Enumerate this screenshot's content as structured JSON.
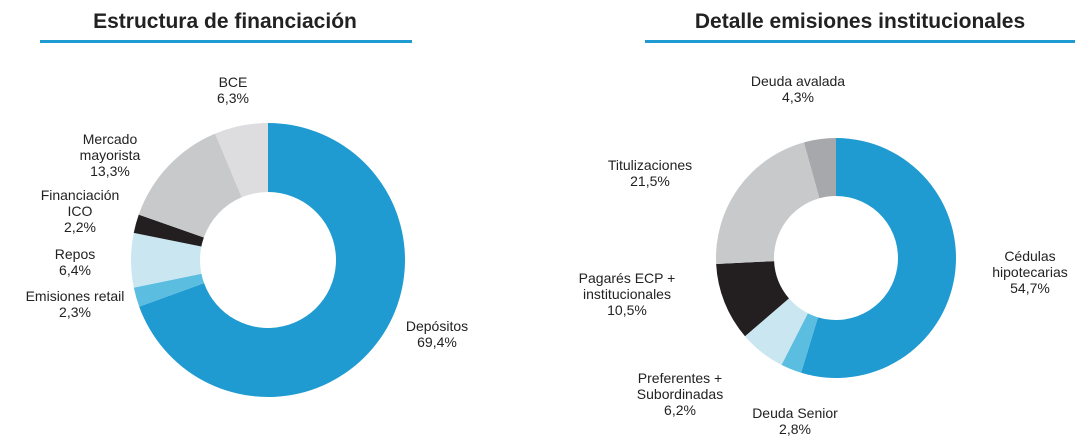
{
  "chart_data": [
    {
      "type": "donut",
      "title": "Estructura de financiación",
      "categories": [
        "Depósitos",
        "Emisiones retail",
        "Repos",
        "Financiación ICO",
        "Mercado mayorista",
        "BCE"
      ],
      "values": [
        69.4,
        2.3,
        6.4,
        2.2,
        13.3,
        6.3
      ],
      "value_labels": [
        "69,4%",
        "2,3%",
        "6,4%",
        "2,2%",
        "13,3%",
        "6,3%"
      ],
      "colors": [
        "#1f9bd1",
        "#5bbde0",
        "#cae7f1",
        "#231f20",
        "#c8c9cb",
        "#dddddf"
      ]
    },
    {
      "type": "donut",
      "title": "Detalle emisiones institucionales",
      "categories": [
        "Cédulas hipotecarias",
        "Deuda Senior",
        "Preferentes + Subordinadas",
        "Pagarés ECP + institucionales",
        "Titulizaciones",
        "Deuda avalada"
      ],
      "values": [
        54.7,
        2.8,
        6.2,
        10.5,
        21.5,
        4.3
      ],
      "value_labels": [
        "54,7%",
        "2,8%",
        "6,2%",
        "10,5%",
        "21,5%",
        "4,3%"
      ],
      "colors": [
        "#1f9bd1",
        "#5bbde0",
        "#cae7f1",
        "#231f20",
        "#c8c9cb",
        "#a6a8ab"
      ]
    }
  ]
}
